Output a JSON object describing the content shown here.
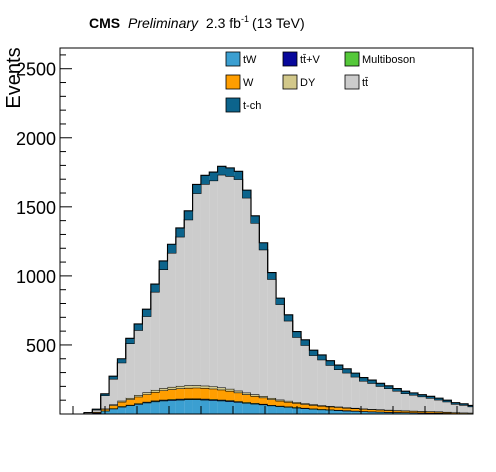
{
  "header": {
    "experiment": "CMS",
    "status": "Preliminary",
    "lumi_prefix": "2.3 fb",
    "lumi_exp": "-1",
    "energy": "(13 TeV)"
  },
  "chart_data": {
    "type": "stacked-histogram",
    "ylabel": "Events",
    "xlabel": "",
    "ylim": [
      0,
      2650
    ],
    "yticks": [
      500,
      1000,
      1500,
      2000,
      2500
    ],
    "bins": 47,
    "legend_position": "top-right",
    "legend": [
      {
        "key": "tW",
        "label": "tW",
        "color": "#3b9fd1"
      },
      {
        "key": "ttV",
        "label": "tt̄+V",
        "color": "#08089b"
      },
      {
        "key": "multiboson",
        "label": "Multiboson",
        "color": "#55c83a"
      },
      {
        "key": "W",
        "label": "W",
        "color": "#ff9e00"
      },
      {
        "key": "DY",
        "label": "DY",
        "color": "#d2c88a"
      },
      {
        "key": "ttbar",
        "label": "tt̄",
        "color": "#cccccc"
      },
      {
        "key": "tch",
        "label": "t-ch",
        "color": "#0c648c"
      }
    ],
    "series": [
      {
        "key": "tW",
        "values": [
          2,
          8,
          22,
          38,
          52,
          62,
          72,
          82,
          90,
          96,
          100,
          103,
          105,
          105,
          103,
          100,
          96,
          92,
          86,
          80,
          74,
          68,
          61,
          55,
          50,
          45,
          40,
          36,
          32,
          29,
          26,
          23,
          21,
          19,
          17,
          15,
          13,
          12,
          11,
          10,
          9,
          8,
          7,
          6,
          5,
          4,
          3
        ]
      },
      {
        "key": "ttV",
        "values": [
          0,
          1,
          1,
          2,
          3,
          3,
          4,
          4,
          5,
          5,
          5,
          5,
          5,
          5,
          5,
          5,
          5,
          5,
          4,
          4,
          4,
          4,
          3,
          3,
          3,
          3,
          3,
          2,
          2,
          2,
          2,
          2,
          2,
          1,
          1,
          1,
          1,
          1,
          1,
          1,
          1,
          1,
          1,
          0,
          0,
          0,
          0
        ]
      },
      {
        "key": "multiboson",
        "values": [
          0,
          0,
          1,
          1,
          1,
          1,
          1,
          2,
          2,
          2,
          2,
          2,
          2,
          2,
          2,
          2,
          2,
          2,
          2,
          1,
          1,
          1,
          1,
          1,
          1,
          1,
          1,
          1,
          1,
          1,
          1,
          1,
          0,
          0,
          0,
          0,
          0,
          0,
          0,
          0,
          0,
          0,
          0,
          0,
          0,
          0,
          0
        ]
      },
      {
        "key": "W",
        "values": [
          0,
          5,
          12,
          22,
          32,
          40,
          48,
          55,
          62,
          68,
          72,
          75,
          77,
          78,
          78,
          76,
          73,
          68,
          63,
          57,
          51,
          46,
          41,
          36,
          33,
          30,
          27,
          25,
          23,
          21,
          20,
          18,
          17,
          16,
          15,
          14,
          13,
          12,
          11,
          10,
          9,
          9,
          8,
          7,
          6,
          5,
          5
        ]
      },
      {
        "key": "DY",
        "values": [
          0,
          1,
          3,
          6,
          8,
          10,
          12,
          14,
          15,
          16,
          17,
          18,
          18,
          18,
          17,
          17,
          16,
          15,
          14,
          13,
          12,
          11,
          10,
          9,
          8,
          7,
          7,
          6,
          5,
          5,
          4,
          4,
          4,
          3,
          3,
          3,
          3,
          2,
          2,
          2,
          2,
          2,
          2,
          2,
          1,
          1,
          1
        ]
      },
      {
        "key": "ttbar",
        "values": [
          8,
          15,
          95,
          185,
          275,
          395,
          470,
          550,
          710,
          860,
          970,
          1080,
          1200,
          1390,
          1460,
          1490,
          1540,
          1540,
          1530,
          1410,
          1240,
          1060,
          860,
          690,
          580,
          470,
          420,
          355,
          330,
          295,
          270,
          250,
          225,
          200,
          187,
          168,
          155,
          140,
          124,
          115,
          105,
          95,
          85,
          74,
          60,
          55,
          45
        ]
      },
      {
        "key": "tch",
        "values": [
          0,
          5,
          12,
          20,
          29,
          37,
          45,
          52,
          57,
          61,
          63,
          64,
          64,
          64,
          63,
          62,
          61,
          60,
          58,
          56,
          53,
          50,
          48,
          45,
          43,
          41,
          39,
          37,
          35,
          33,
          31,
          29,
          27,
          25,
          23,
          21,
          19,
          17,
          16,
          15,
          14,
          13,
          12,
          11,
          10,
          9,
          8
        ]
      }
    ]
  }
}
